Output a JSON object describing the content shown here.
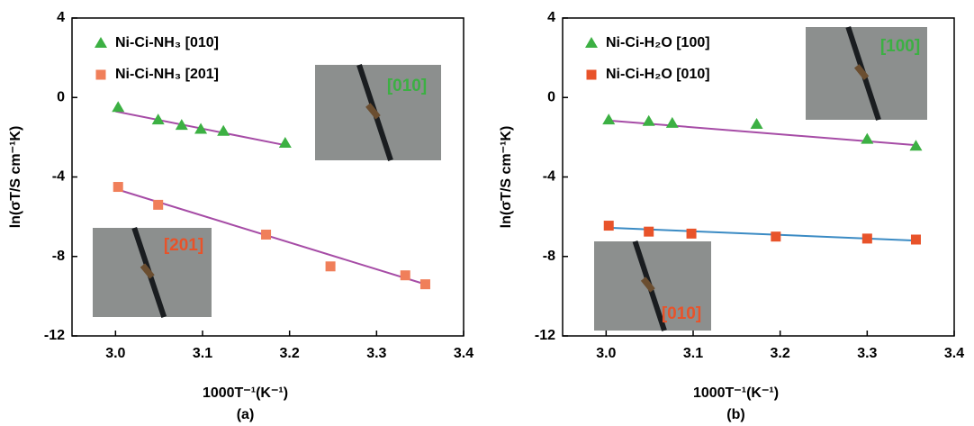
{
  "chart_data": [
    {
      "type": "scatter",
      "panel_label": "(a)",
      "x_label": "1000T⁻¹(K⁻¹)",
      "y_label": "ln(σT/S cm⁻¹K)",
      "xlim": [
        2.95,
        3.4
      ],
      "ylim": [
        -12,
        4
      ],
      "xticks": [
        {
          "value": 3,
          "label": "3.0"
        },
        {
          "value": 3.1,
          "label": "3.1"
        },
        {
          "value": 3.2,
          "label": "3.2"
        },
        {
          "value": 3.3,
          "label": "3.3"
        },
        {
          "value": 3.4,
          "label": "3.4"
        }
      ],
      "yticks": [
        4,
        0,
        -4,
        -8,
        -12
      ],
      "series": [
        {
          "name": "Ni-Ci-NH₃ [010]",
          "color": "#3cb043",
          "marker": "triangle",
          "x": [
            3.003,
            3.049,
            3.076,
            3.098,
            3.124,
            3.195
          ],
          "values": [
            -0.5,
            -1.13,
            -1.4,
            -1.6,
            -1.7,
            -2.3
          ],
          "fit_x": [
            3.0,
            3.195
          ],
          "fit_values": [
            -0.7,
            -2.4
          ],
          "fit_color": "#a64ca6"
        },
        {
          "name": "Ni-Ci-NH₃ [201]",
          "color": "#f07f5a",
          "marker": "square",
          "x": [
            3.003,
            3.049,
            3.173,
            3.247,
            3.333,
            3.356
          ],
          "values": [
            -4.5,
            -5.4,
            -6.9,
            -8.5,
            -8.95,
            -9.4
          ],
          "fit_x": [
            3.0,
            3.356
          ],
          "fit_values": [
            -4.6,
            -9.4
          ],
          "fit_color": "#a64ca6"
        }
      ],
      "insets": [
        {
          "label": "[010]",
          "color": "#3cb043"
        },
        {
          "label": "[201]",
          "color": "#e8532a"
        }
      ]
    },
    {
      "type": "scatter",
      "panel_label": "(b)",
      "x_label": "1000T⁻¹(K⁻¹)",
      "y_label": "ln(σT/S cm⁻¹K)",
      "xlim": [
        2.95,
        3.4
      ],
      "ylim": [
        -12,
        4
      ],
      "xticks": [
        {
          "value": 3,
          "label": "3.0"
        },
        {
          "value": 3.1,
          "label": "3.1"
        },
        {
          "value": 3.2,
          "label": "3.2"
        },
        {
          "value": 3.3,
          "label": "3.3"
        },
        {
          "value": 3.4,
          "label": "3.4"
        }
      ],
      "yticks": [
        4,
        0,
        -4,
        -8,
        -12
      ],
      "series": [
        {
          "name": "Ni-Ci-H₂O [100]",
          "color": "#3cb043",
          "marker": "triangle",
          "x": [
            3.003,
            3.049,
            3.076,
            3.173,
            3.3,
            3.356
          ],
          "values": [
            -1.13,
            -1.2,
            -1.3,
            -1.35,
            -2.1,
            -2.45
          ],
          "fit_x": [
            3.0,
            3.356
          ],
          "fit_values": [
            -1.15,
            -2.4
          ],
          "fit_color": "#a64ca6"
        },
        {
          "name": "Ni-Ci-H₂O [010]",
          "color": "#e8532a",
          "marker": "square",
          "x": [
            3.003,
            3.049,
            3.098,
            3.195,
            3.3,
            3.356
          ],
          "values": [
            -6.45,
            -6.75,
            -6.85,
            -7.0,
            -7.1,
            -7.15
          ],
          "fit_x": [
            3.0,
            3.356
          ],
          "fit_values": [
            -6.55,
            -7.2
          ],
          "fit_color": "#3b8bc4"
        }
      ],
      "insets": [
        {
          "label": "[100]",
          "color": "#3cb043"
        },
        {
          "label": "[010]",
          "color": "#e8532a"
        }
      ]
    }
  ]
}
